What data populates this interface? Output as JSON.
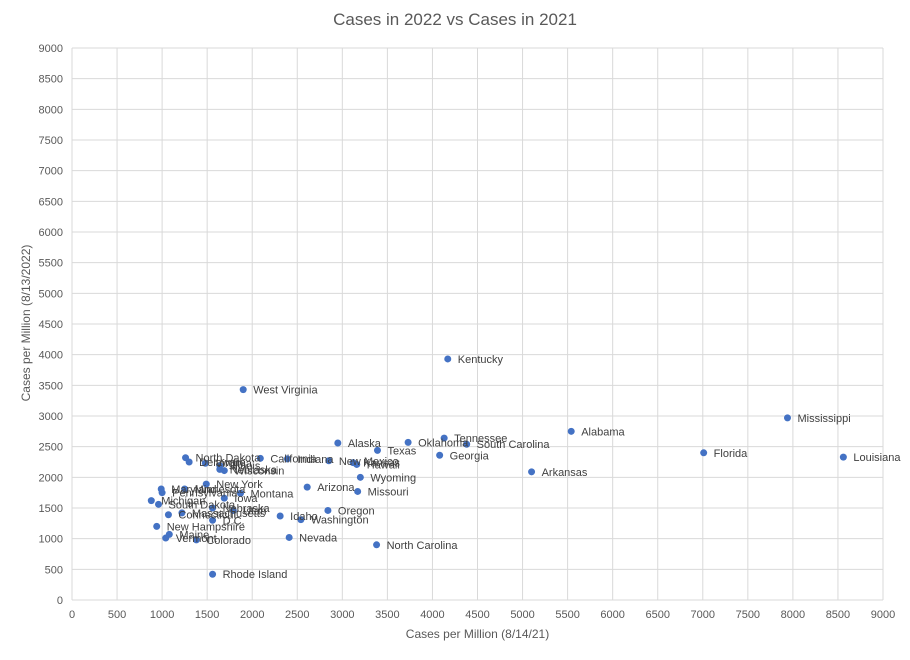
{
  "chart_data": {
    "type": "scatter",
    "title": "Cases in 2022 vs Cases in 2021",
    "xlabel": "Cases per Million (8/14/21)",
    "ylabel": "Cases per Million (8/13/2022)",
    "xlim": [
      0,
      9000
    ],
    "ylim": [
      0,
      9000
    ],
    "x_ticks": [
      0,
      500,
      1000,
      1500,
      2000,
      2500,
      3000,
      3500,
      4000,
      4500,
      5000,
      5500,
      6000,
      6500,
      7000,
      7500,
      8000,
      8500,
      9000
    ],
    "y_ticks": [
      0,
      500,
      1000,
      1500,
      2000,
      2500,
      3000,
      3500,
      4000,
      4500,
      5000,
      5500,
      6000,
      6500,
      7000,
      7500,
      8000,
      8500,
      9000
    ],
    "grid": true,
    "legend": "none",
    "marker_color": "#4472c4",
    "points": [
      {
        "label": "Kentucky",
        "x": 4170,
        "y": 3930
      },
      {
        "label": "West Virginia",
        "x": 1900,
        "y": 3430
      },
      {
        "label": "Mississippi",
        "x": 7940,
        "y": 2970
      },
      {
        "label": "Alabama",
        "x": 5540,
        "y": 2750
      },
      {
        "label": "Tennessee",
        "x": 4130,
        "y": 2640
      },
      {
        "label": "Alaska",
        "x": 2950,
        "y": 2560
      },
      {
        "label": "Oklahoma",
        "x": 3730,
        "y": 2570
      },
      {
        "label": "South Carolina",
        "x": 4380,
        "y": 2540
      },
      {
        "label": "Texas",
        "x": 3390,
        "y": 2440
      },
      {
        "label": "Florida",
        "x": 7010,
        "y": 2400
      },
      {
        "label": "Georgia",
        "x": 4080,
        "y": 2360
      },
      {
        "label": "Louisiana",
        "x": 8560,
        "y": 2330
      },
      {
        "label": "North Dakota",
        "x": 1260,
        "y": 2320
      },
      {
        "label": "California",
        "x": 2090,
        "y": 2310
      },
      {
        "label": "Indiana",
        "x": 2390,
        "y": 2300
      },
      {
        "label": "New Mexico",
        "x": 2850,
        "y": 2270
      },
      {
        "label": "Kansas",
        "x": 3120,
        "y": 2240
      },
      {
        "label": "Hawaii",
        "x": 3160,
        "y": 2210
      },
      {
        "label": "Virginia",
        "x": 1480,
        "y": 2230
      },
      {
        "label": "Illinois",
        "x": 1640,
        "y": 2190
      },
      {
        "label": "Delaware",
        "x": 1300,
        "y": 2250
      },
      {
        "label": "Wisconsin",
        "x": 1690,
        "y": 2110
      },
      {
        "label": "Nebraska",
        "x": 1640,
        "y": 2130
      },
      {
        "label": "Arkansas",
        "x": 5100,
        "y": 2090
      },
      {
        "label": "Wyoming",
        "x": 3200,
        "y": 2000
      },
      {
        "label": "New York",
        "x": 1490,
        "y": 1890
      },
      {
        "label": "Arizona",
        "x": 2610,
        "y": 1840
      },
      {
        "label": "Maryland",
        "x": 990,
        "y": 1810
      },
      {
        "label": "Minnesota",
        "x": 1250,
        "y": 1810
      },
      {
        "label": "Missouri",
        "x": 3170,
        "y": 1770
      },
      {
        "label": "Pennsylvania",
        "x": 1000,
        "y": 1750
      },
      {
        "label": "Montana",
        "x": 1870,
        "y": 1740
      },
      {
        "label": "Iowa",
        "x": 1690,
        "y": 1660
      },
      {
        "label": "Michigan",
        "x": 880,
        "y": 1620
      },
      {
        "label": "South Dakota",
        "x": 960,
        "y": 1560
      },
      {
        "label": "Nebraska",
        "x": 1560,
        "y": 1500
      },
      {
        "label": "Utah",
        "x": 1790,
        "y": 1460
      },
      {
        "label": "Oregon",
        "x": 2840,
        "y": 1460
      },
      {
        "label": "Connecticut",
        "x": 1070,
        "y": 1390
      },
      {
        "label": "Massachusetts",
        "x": 1220,
        "y": 1420
      },
      {
        "label": "Idaho",
        "x": 2310,
        "y": 1370
      },
      {
        "label": "D.C.",
        "x": 1560,
        "y": 1300
      },
      {
        "label": "Washington",
        "x": 2540,
        "y": 1310
      },
      {
        "label": "New Hampshire",
        "x": 940,
        "y": 1200
      },
      {
        "label": "Maine",
        "x": 1080,
        "y": 1070
      },
      {
        "label": "Vermont",
        "x": 1040,
        "y": 1010
      },
      {
        "label": "Colorado",
        "x": 1380,
        "y": 980
      },
      {
        "label": "Nevada",
        "x": 2410,
        "y": 1020
      },
      {
        "label": "North Carolina",
        "x": 3380,
        "y": 900
      },
      {
        "label": "Rhode Island",
        "x": 1560,
        "y": 420
      }
    ]
  }
}
